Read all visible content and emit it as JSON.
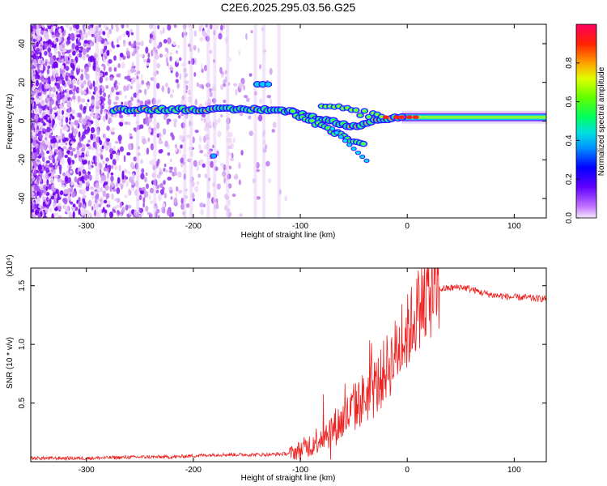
{
  "title": "C2E6.2025.295.03.56.G25",
  "chart_data": [
    {
      "type": "heatmap",
      "xlabel": "Height of straight line (km)",
      "ylabel": "Frequency (Hz)",
      "xlim": [
        -352,
        130
      ],
      "ylim": [
        -50,
        50
      ],
      "xticks": [
        -300,
        -200,
        -100,
        0,
        100
      ],
      "yticks": [
        -40,
        -20,
        0,
        20,
        40
      ],
      "colorbar": {
        "label": "Normalized spectral amplitude",
        "range": [
          0,
          1
        ],
        "ticks": [
          0.0,
          0.2,
          0.4,
          0.6,
          0.8
        ],
        "colormap": [
          "#ffffff",
          "#e4c8f4",
          "#7f00ff",
          "#0000ff",
          "#00c0ff",
          "#00ff80",
          "#60ff00",
          "#ffff00",
          "#ff8000",
          "#ff0000"
        ]
      },
      "carrier_track": [
        [
          -275,
          6
        ],
        [
          -250,
          6
        ],
        [
          -220,
          6
        ],
        [
          -190,
          6
        ],
        [
          -160,
          6
        ],
        [
          -130,
          6
        ],
        [
          -110,
          5
        ],
        [
          -95,
          3
        ],
        [
          -80,
          1
        ],
        [
          -65,
          -1
        ],
        [
          -50,
          -3
        ],
        [
          -40,
          -1
        ],
        [
          -30,
          1
        ],
        [
          -20,
          1
        ],
        [
          -10,
          2
        ],
        [
          0,
          2
        ],
        [
          10,
          2
        ],
        [
          50,
          2
        ],
        [
          100,
          2
        ],
        [
          130,
          2
        ]
      ],
      "track_note": "no grid; dense speckle noise below -190 km"
    },
    {
      "type": "line",
      "xlabel": "Height of straight line (km)",
      "ylabel": "SNR (10 * v/v)",
      "multiplier": "(x10⁴)",
      "xlim": [
        -352,
        130
      ],
      "ylim": [
        0,
        1.65
      ],
      "xticks": [
        -300,
        -200,
        -100,
        0,
        100
      ],
      "yticks": [
        0.5,
        1.0,
        1.5
      ],
      "series": [
        {
          "color": "#ee2020",
          "x": [
            -352,
            -300,
            -250,
            -220,
            -200,
            -180,
            -160,
            -130,
            -110,
            -100,
            -90,
            -80,
            -70,
            -60,
            -50,
            -40,
            -30,
            -25,
            -20,
            -15,
            -10,
            -5,
            0,
            5,
            10,
            15,
            20,
            30,
            40,
            50,
            60,
            70,
            80,
            90,
            100,
            110,
            120,
            130
          ],
          "y": [
            0.03,
            0.03,
            0.04,
            0.04,
            0.05,
            0.06,
            0.06,
            0.06,
            0.07,
            0.1,
            0.15,
            0.22,
            0.28,
            0.35,
            0.45,
            0.55,
            0.62,
            0.7,
            0.8,
            0.85,
            0.95,
            1.0,
            1.1,
            1.2,
            1.3,
            1.38,
            1.43,
            1.47,
            1.48,
            1.49,
            1.47,
            1.44,
            1.42,
            1.41,
            1.4,
            1.4,
            1.39,
            1.39
          ]
        }
      ]
    }
  ]
}
